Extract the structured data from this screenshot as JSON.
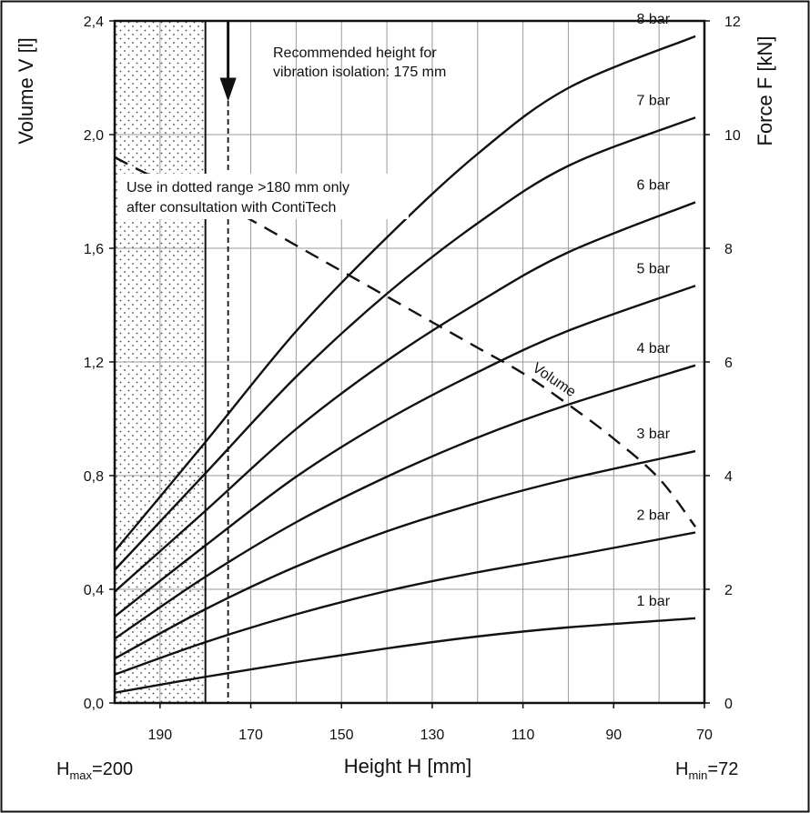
{
  "chart_data": {
    "type": "line",
    "title": "",
    "xlabel": "Height H [mm]",
    "ylabel_left": "Volume V [l]",
    "ylabel_right": "Force F [kN]",
    "x_reversed": true,
    "xlim": [
      200,
      70
    ],
    "ylim_left": [
      0.0,
      2.4
    ],
    "ylim_right": [
      0,
      12
    ],
    "x_ticks": [
      "190",
      "170",
      "150",
      "130",
      "110",
      "90",
      "70"
    ],
    "y_left_ticks": [
      "0,0",
      "0,4",
      "0,8",
      "1,2",
      "1,6",
      "2,0",
      "2,4"
    ],
    "y_right_ticks": [
      "0",
      "2",
      "4",
      "6",
      "8",
      "10",
      "12"
    ],
    "grid": true,
    "h_max_label": {
      "main": "H",
      "sub": "max",
      "value": "=200"
    },
    "h_min_label": {
      "main": "H",
      "sub": "min",
      "value": "=72"
    },
    "annotations": {
      "recommended_line1": "Recommended height for",
      "recommended_line2": "vibration isolation: 175 mm",
      "recommended_height": 175,
      "dotted_line1": "Use in dotted range >180 mm only",
      "dotted_line2": "after consultation with ContiTech",
      "dotted_range": [
        200,
        180
      ],
      "volume_label": "Volume"
    },
    "force_series": [
      {
        "name": "1 bar",
        "x": [
          200,
          180,
          160,
          140,
          120,
          100,
          72
        ],
        "y": [
          0.18,
          0.46,
          0.72,
          0.96,
          1.17,
          1.33,
          1.49
        ]
      },
      {
        "name": "2 bar",
        "x": [
          200,
          180,
          160,
          140,
          120,
          100,
          72
        ],
        "y": [
          0.5,
          1.07,
          1.56,
          1.97,
          2.3,
          2.58,
          3.0
        ]
      },
      {
        "name": "3 bar",
        "x": [
          200,
          180,
          160,
          140,
          120,
          100,
          72
        ],
        "y": [
          0.78,
          1.65,
          2.4,
          3.02,
          3.52,
          3.94,
          4.43
        ]
      },
      {
        "name": "4 bar",
        "x": [
          200,
          180,
          160,
          140,
          120,
          100,
          72
        ],
        "y": [
          1.13,
          2.22,
          3.18,
          3.98,
          4.67,
          5.25,
          5.94
        ]
      },
      {
        "name": "5 bar",
        "x": [
          200,
          180,
          160,
          140,
          120,
          100,
          72
        ],
        "y": [
          1.52,
          2.77,
          3.98,
          4.98,
          5.82,
          6.55,
          7.34
        ]
      },
      {
        "name": "6 bar",
        "x": [
          200,
          180,
          160,
          140,
          120,
          100,
          72
        ],
        "y": [
          1.96,
          3.38,
          4.82,
          6.02,
          7.04,
          7.93,
          8.81
        ]
      },
      {
        "name": "7 bar",
        "x": [
          200,
          180,
          160,
          140,
          120,
          100,
          72
        ],
        "y": [
          2.34,
          4.04,
          5.74,
          7.2,
          8.44,
          9.45,
          10.3
        ]
      },
      {
        "name": "8 bar",
        "x": [
          200,
          180,
          160,
          140,
          120,
          100,
          72
        ],
        "y": [
          2.67,
          4.59,
          6.54,
          8.19,
          9.66,
          10.82,
          11.73
        ]
      }
    ],
    "volume_series": {
      "name": "Volume",
      "x": [
        200,
        190,
        180,
        170,
        160,
        150,
        140,
        130,
        120,
        110,
        100,
        90,
        80,
        72
      ],
      "y": [
        1.92,
        1.84,
        1.78,
        1.7,
        1.61,
        1.52,
        1.43,
        1.34,
        1.25,
        1.16,
        1.05,
        0.93,
        0.79,
        0.62
      ]
    }
  }
}
